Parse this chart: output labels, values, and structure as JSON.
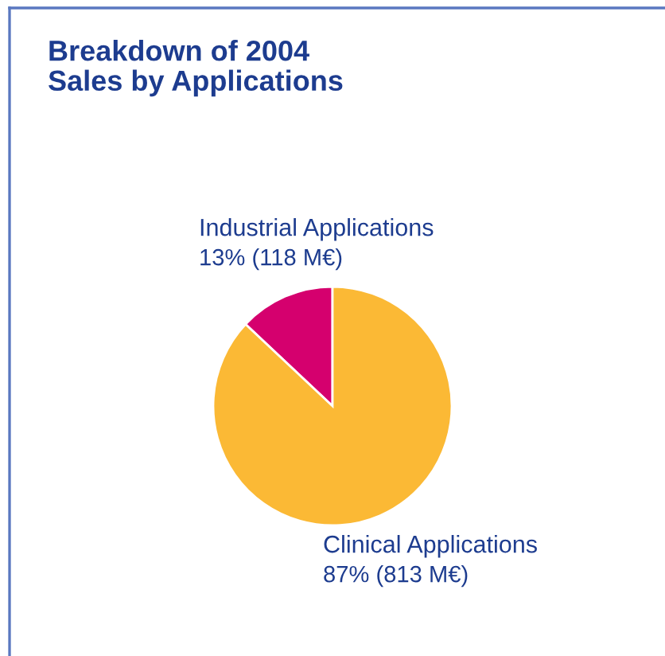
{
  "chart_data": {
    "type": "pie",
    "title": "Breakdown of 2004\nSales by Applications",
    "categories": [
      "Industrial Applications",
      "Clinical Applications"
    ],
    "values": [
      13,
      87
    ],
    "value_labels": [
      "13% (118 M€)",
      "87% (813 M€)"
    ],
    "colors": [
      "#d5006e",
      "#fbb935"
    ]
  }
}
